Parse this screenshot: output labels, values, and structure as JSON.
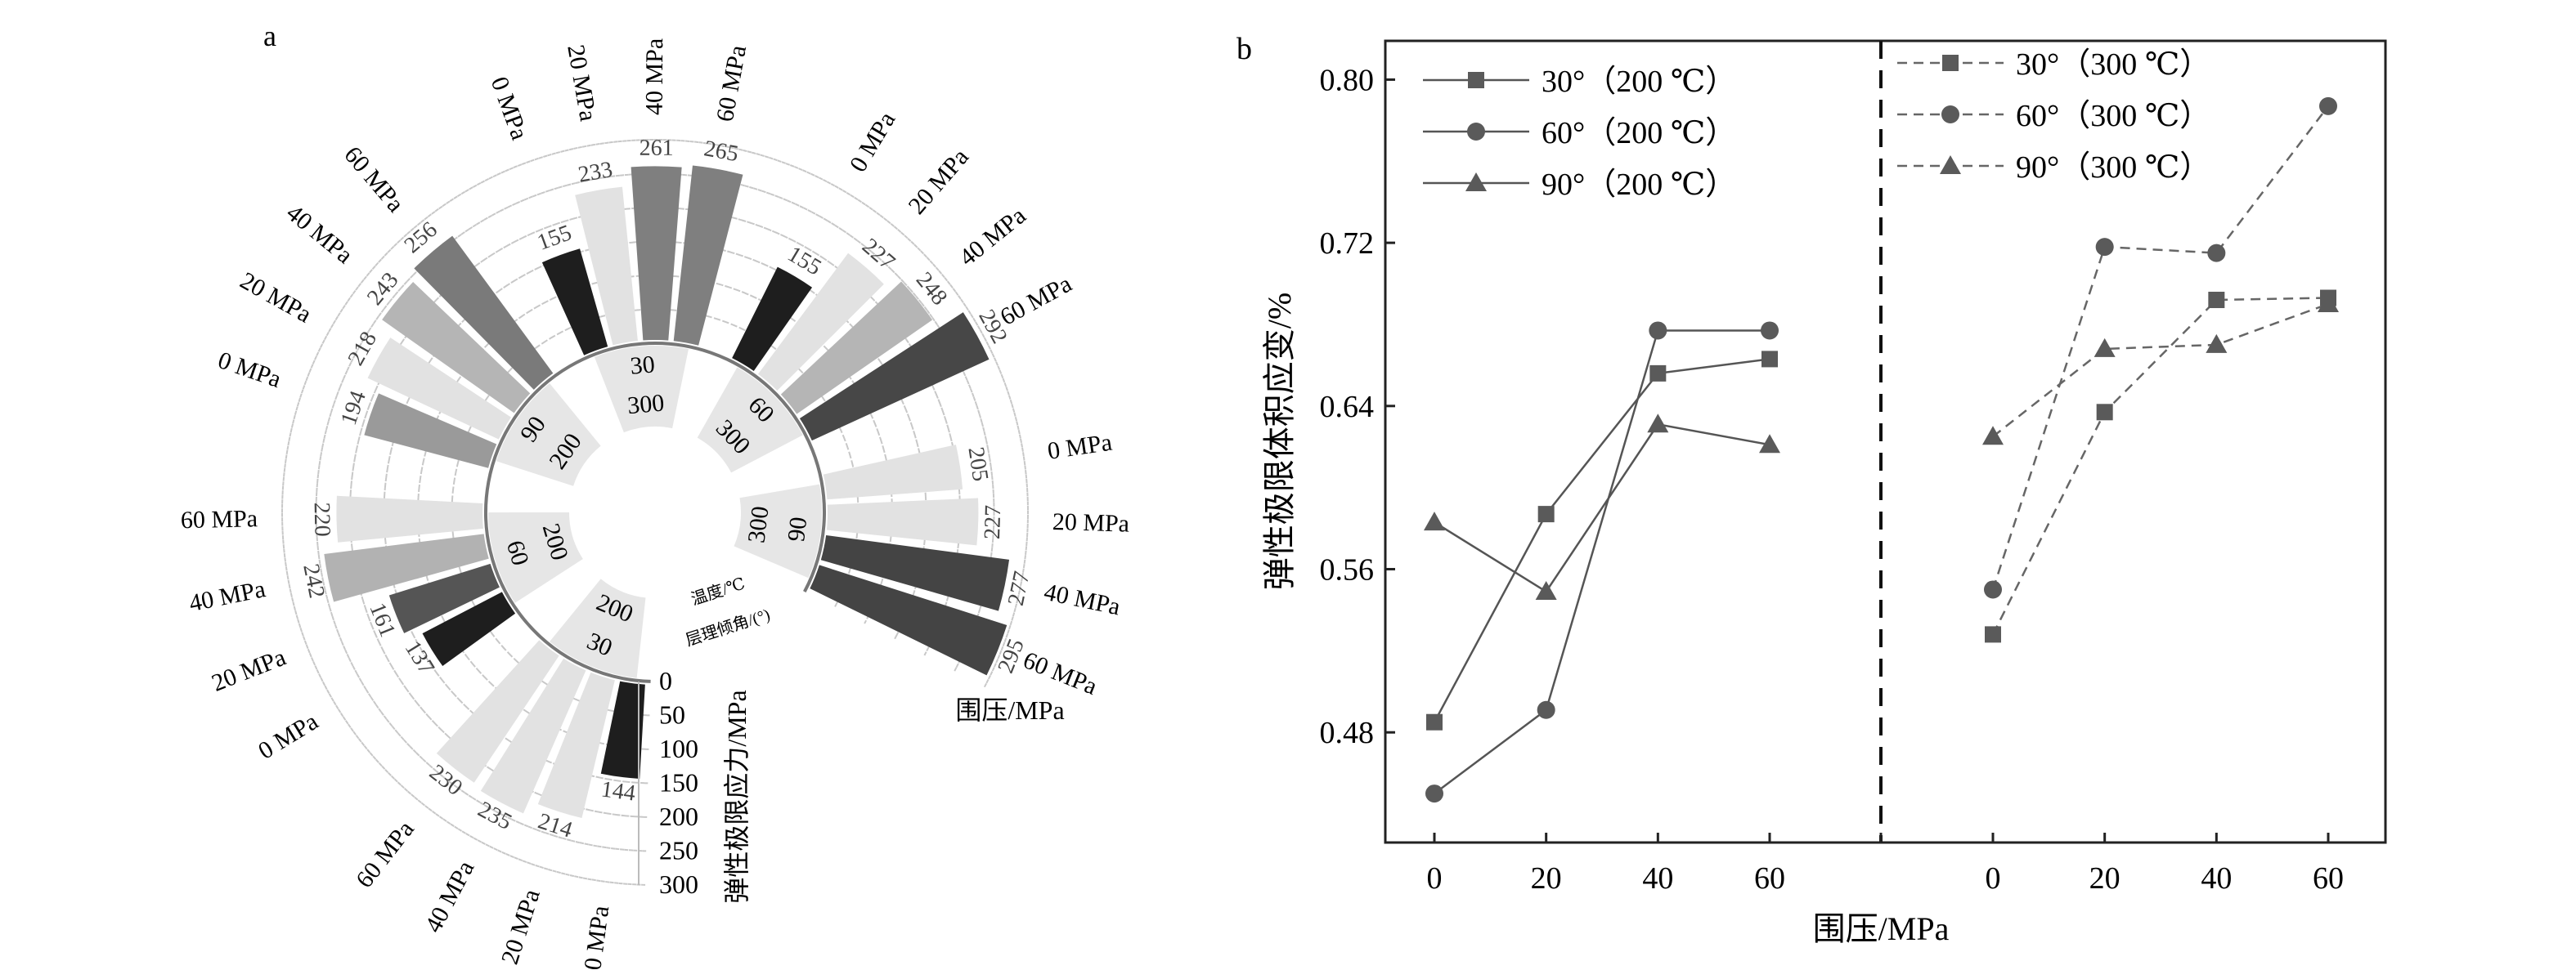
{
  "panel_labels": {
    "a": "a",
    "b": "b"
  },
  "chart_data": [
    {
      "type": "bar",
      "subtype": "radial-bar",
      "panel": "a",
      "radial_axis_label": "弹性极限应力/MPa",
      "radial_ticks": [
        "0",
        "50",
        "100",
        "150",
        "200",
        "250",
        "300"
      ],
      "radial_range": [
        0,
        300
      ],
      "legend_label": "围压/MPa",
      "inner_labels": {
        "temperature": "温度/℃",
        "dip_angle": "层理倾角/(°)"
      },
      "pressure_labels": [
        "0 MPa",
        "20 MPa",
        "40 MPa",
        "60 MPa"
      ],
      "groups": [
        {
          "angle": "30",
          "temperature": "200",
          "values": [
            144,
            214,
            235,
            230
          ],
          "colors": [
            "#1e1e1e",
            "#e2e2e2",
            "#e2e2e2",
            "#e2e2e2"
          ]
        },
        {
          "angle": "60",
          "temperature": "200",
          "values": [
            137,
            161,
            242,
            220
          ],
          "colors": [
            "#1e1e1e",
            "#555555",
            "#b2b2b2",
            "#e2e2e2"
          ]
        },
        {
          "angle": "90",
          "temperature": "200",
          "values": [
            194,
            218,
            243,
            256
          ],
          "colors": [
            "#9a9a9a",
            "#e2e2e2",
            "#b5b5b5",
            "#7a7a7a"
          ]
        },
        {
          "angle": "30",
          "temperature": "300",
          "values": [
            155,
            233,
            261,
            265
          ],
          "colors": [
            "#1e1e1e",
            "#e2e2e2",
            "#7f7f7f",
            "#7f7f7f"
          ]
        },
        {
          "angle": "60",
          "temperature": "300",
          "values": [
            155,
            227,
            248,
            292
          ],
          "colors": [
            "#1e1e1e",
            "#e2e2e2",
            "#b5b5b5",
            "#474747"
          ]
        },
        {
          "angle": "90",
          "temperature": "300",
          "values": [
            205,
            227,
            277,
            295
          ],
          "colors": [
            "#e2e2e2",
            "#e2e2e2",
            "#444444",
            "#444444"
          ]
        }
      ]
    },
    {
      "type": "line",
      "panel": "b",
      "xlabel": "围压/MPa",
      "ylabel": "弹性极限体积应变/%",
      "ylim": [
        0.426,
        0.819
      ],
      "yticks": [
        "0.48",
        "0.56",
        "0.64",
        "0.72",
        "0.80"
      ],
      "x": [
        0,
        20,
        40,
        60
      ],
      "xtick_labels": [
        "0",
        "20",
        "40",
        "60"
      ],
      "series": [
        {
          "name": "30°（200 ℃）",
          "group": "200",
          "marker": "square",
          "values": [
            0.485,
            0.587,
            0.656,
            0.663
          ]
        },
        {
          "name": "60°（200 ℃）",
          "group": "200",
          "marker": "circle",
          "values": [
            0.45,
            0.491,
            0.677,
            0.677
          ]
        },
        {
          "name": "90°（200 ℃）",
          "group": "200",
          "marker": "triangle",
          "values": [
            0.583,
            0.549,
            0.631,
            0.621
          ]
        },
        {
          "name": "30°（300 ℃）",
          "group": "300",
          "marker": "square",
          "values": [
            0.528,
            0.637,
            0.692,
            0.693
          ]
        },
        {
          "name": "60°（300 ℃）",
          "group": "300",
          "marker": "circle",
          "values": [
            0.55,
            0.718,
            0.715,
            0.787
          ]
        },
        {
          "name": "90°（300 ℃）",
          "group": "300",
          "marker": "triangle",
          "values": [
            0.625,
            0.668,
            0.67,
            0.69
          ]
        }
      ],
      "colors": {
        "line_200": "#555555",
        "line_300": "#666666",
        "marker": "#5a5a5a"
      }
    }
  ]
}
